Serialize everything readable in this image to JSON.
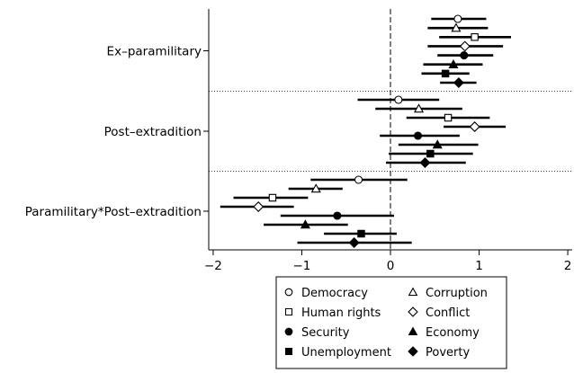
{
  "chart_data": {
    "type": "scatter",
    "subtype": "coefficient-plot",
    "orientation": "horizontal",
    "xlim": [
      -2.05,
      2.05
    ],
    "x_ticks": [
      -2,
      -1,
      0,
      1,
      2
    ],
    "x_tick_labels": [
      "−2",
      "−1",
      "0",
      "1",
      "2"
    ],
    "reference_line": {
      "x": 0,
      "style": "dashed"
    },
    "group_separator_style": "dotted",
    "grid": false,
    "legend_position": "bottom-center",
    "legend_columns": 2,
    "groups": [
      {
        "label": "Ex–paramilitary"
      },
      {
        "label": "Post–extradition"
      },
      {
        "label": "Paramilitary*Post–extradition"
      }
    ],
    "series": [
      {
        "name": "Democracy",
        "marker": "circle-open",
        "estimates": [
          0.76,
          0.09,
          -0.36
        ],
        "ci_low": [
          0.46,
          -0.37,
          -0.9
        ],
        "ci_high": [
          1.08,
          0.55,
          0.19
        ]
      },
      {
        "name": "Corruption",
        "marker": "triangle-open",
        "estimates": [
          0.74,
          0.32,
          -0.84
        ],
        "ci_low": [
          0.42,
          -0.17,
          -1.15
        ],
        "ci_high": [
          1.1,
          0.81,
          -0.54
        ]
      },
      {
        "name": "Human rights",
        "marker": "square-open",
        "estimates": [
          0.95,
          0.65,
          -1.33
        ],
        "ci_low": [
          0.55,
          0.18,
          -1.77
        ],
        "ci_high": [
          1.36,
          1.12,
          -0.93
        ]
      },
      {
        "name": "Conflict",
        "marker": "diamond-open",
        "estimates": [
          0.84,
          0.95,
          -1.49
        ],
        "ci_low": [
          0.42,
          0.6,
          -1.92
        ],
        "ci_high": [
          1.27,
          1.3,
          -1.09
        ]
      },
      {
        "name": "Security",
        "marker": "circle-filled",
        "estimates": [
          0.83,
          0.31,
          -0.6
        ],
        "ci_low": [
          0.53,
          -0.12,
          -1.24
        ],
        "ci_high": [
          1.16,
          0.78,
          0.04
        ]
      },
      {
        "name": "Economy",
        "marker": "triangle-filled",
        "estimates": [
          0.71,
          0.53,
          -0.96
        ],
        "ci_low": [
          0.37,
          0.09,
          -1.43
        ],
        "ci_high": [
          1.04,
          0.99,
          -0.48
        ]
      },
      {
        "name": "Unemployment",
        "marker": "square-filled",
        "estimates": [
          0.62,
          0.45,
          -0.33
        ],
        "ci_low": [
          0.35,
          -0.02,
          -0.75
        ],
        "ci_high": [
          0.89,
          0.93,
          0.07
        ]
      },
      {
        "name": "Poverty",
        "marker": "diamond-filled",
        "estimates": [
          0.77,
          0.39,
          -0.41
        ],
        "ci_low": [
          0.56,
          -0.05,
          -1.05
        ],
        "ci_high": [
          0.97,
          0.85,
          0.24
        ]
      }
    ]
  }
}
